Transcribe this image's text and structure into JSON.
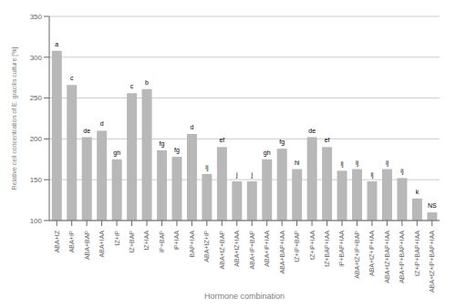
{
  "chart_data": {
    "type": "bar",
    "categories": [
      "ABA+tZ",
      "ABA+iP",
      "ABA+BAP",
      "ABA+IAA",
      "tZ+iP",
      "tZ+BAP",
      "tZ+IAA",
      "iP+BAP",
      "iP+IAA",
      "BAP+IAA",
      "ABA+tZ+iP",
      "ABA+tZ+BAP",
      "ABA+tZ+IAA",
      "ABA+iP+BAP",
      "ABA+iP+IAA",
      "ABA+BAP+IAA",
      "tZ+iP+BAP",
      "tZ+iP+IAA",
      "tZ+BAP+IAA",
      "iP+BAP+IAA",
      "ABA+tZ+iP+BAP",
      "ABA+tZ+iP+IAA",
      "ABA+tZ+BAP+IAA",
      "ABA+iP+BAP+IAA",
      "tZ+iP+BAP+IAA",
      "ABA+tZ+iP+BAP+IAA"
    ],
    "values": [
      308,
      266,
      202,
      210,
      175,
      256,
      261,
      186,
      178,
      206,
      157,
      190,
      148,
      148,
      175,
      188,
      163,
      202,
      190,
      161,
      163,
      148,
      163,
      152,
      127,
      110
    ],
    "annotations": [
      "a",
      "c",
      "de",
      "d",
      "gh",
      "c",
      "b",
      "fg",
      "fg",
      "d",
      "ij",
      "ef",
      "j",
      "j",
      "gh",
      "fg",
      "hi",
      "de",
      "ef",
      "ij",
      "ij",
      "ij",
      "ij",
      "ij",
      "k",
      "NS"
    ],
    "color": "#b8b8b8",
    "y_label": "Relative cell concentration of E. gracilis culture [%]",
    "x_label": "Hormone combination",
    "ylim": [
      100,
      350
    ],
    "yticks": [
      100,
      150,
      200,
      250,
      300,
      350
    ],
    "grid": true
  }
}
